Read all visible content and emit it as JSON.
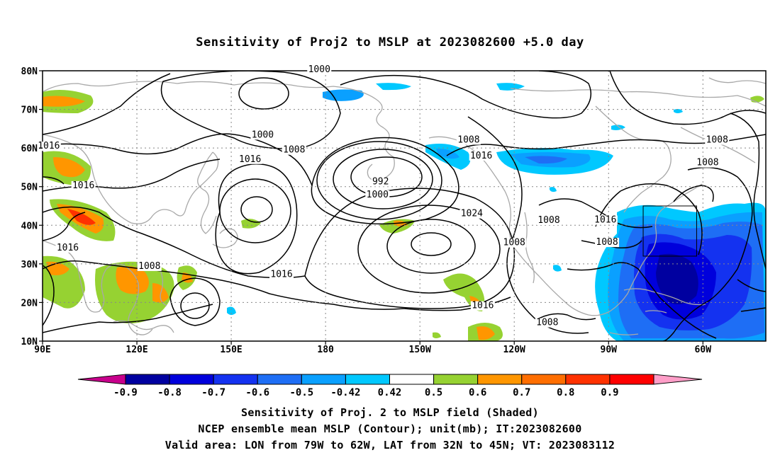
{
  "title": "Sensitivity of Proj2 to MSLP at 2023082600 +5.0 day",
  "map": {
    "lon_labels": [
      "90E",
      "120E",
      "150E",
      "180",
      "150W",
      "120W",
      "90W",
      "60W"
    ],
    "lat_labels": [
      "80N",
      "70N",
      "60N",
      "50N",
      "40N",
      "30N",
      "20N",
      "10N"
    ],
    "lon_range": [
      90,
      320
    ],
    "lat_range": [
      10,
      80
    ],
    "grid": "dotted",
    "contour_labels": [
      {
        "text": "1000",
        "lon": 178,
        "lat": 79.6
      },
      {
        "text": "1000",
        "lon": 160,
        "lat": 62.7
      },
      {
        "text": "1016",
        "lon": 92,
        "lat": 59.8
      },
      {
        "text": "1008",
        "lon": 170,
        "lat": 58.8
      },
      {
        "text": "1016",
        "lon": 156,
        "lat": 56.4
      },
      {
        "text": "1016",
        "lon": 103,
        "lat": 49.6
      },
      {
        "text": "992",
        "lon": 197.5,
        "lat": 50.6
      },
      {
        "text": "1000",
        "lon": 196.5,
        "lat": 47.2
      },
      {
        "text": "1008",
        "lon": 225.5,
        "lat": 61.4
      },
      {
        "text": "1016",
        "lon": 229.5,
        "lat": 57.3
      },
      {
        "text": "1024",
        "lon": 226.5,
        "lat": 42.3
      },
      {
        "text": "1016",
        "lon": 98,
        "lat": 33.5
      },
      {
        "text": "1008",
        "lon": 124,
        "lat": 28.7
      },
      {
        "text": "1016",
        "lon": 166,
        "lat": 26.6
      },
      {
        "text": "1008",
        "lon": 240,
        "lat": 34.8
      },
      {
        "text": "1008",
        "lon": 251,
        "lat": 40.6
      },
      {
        "text": "1016",
        "lon": 269,
        "lat": 40.7
      },
      {
        "text": "1008",
        "lon": 269.5,
        "lat": 34.9
      },
      {
        "text": "1016",
        "lon": 230,
        "lat": 18.5
      },
      {
        "text": "1008",
        "lon": 250.5,
        "lat": 14.1
      },
      {
        "text": "1008",
        "lon": 304.5,
        "lat": 61.4
      },
      {
        "text": "1008",
        "lon": 301.5,
        "lat": 55.5
      }
    ],
    "valid_box": {
      "lon_min": 281,
      "lon_max": 298,
      "lat_min": 32,
      "lat_max": 45
    }
  },
  "colorbar": {
    "labels": [
      "-0.9",
      "-0.8",
      "-0.7",
      "-0.6",
      "-0.5",
      "-0.42",
      "0.42",
      "0.5",
      "0.6",
      "0.7",
      "0.8",
      "0.9"
    ],
    "colors": [
      "#0000a0",
      "#0000dc",
      "#1432f0",
      "#1e6ef5",
      "#0aa0ff",
      "#00c8ff",
      "#ffffff",
      "#96d232",
      "#ff9600",
      "#ff6e00",
      "#ff3200",
      "#ff0000"
    ],
    "under_color": "#c8008c",
    "over_color": "#ff9ec8"
  },
  "caption": {
    "line1": "Sensitivity of Proj. 2 to MSLP field (Shaded)",
    "line2": "NCEP ensemble mean MSLP (Contour); unit(mb); IT:2023082600",
    "line3": "Valid area: LON from 79W to 62W, LAT from 32N to 45N; VT: 2023083112"
  }
}
